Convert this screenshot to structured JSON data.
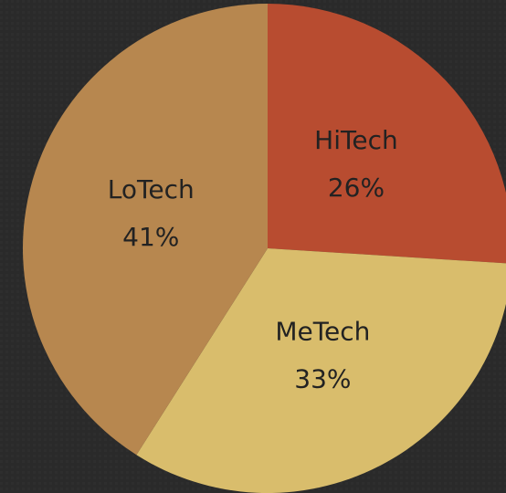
{
  "chart_data": {
    "type": "pie",
    "categories": [
      "HiTech",
      "MeTech",
      "LoTech"
    ],
    "values": [
      26,
      33,
      41
    ],
    "value_labels": [
      "26%",
      "33%",
      "41%"
    ],
    "colors": [
      "#b84c30",
      "#d9bd6c",
      "#b7874f"
    ]
  }
}
